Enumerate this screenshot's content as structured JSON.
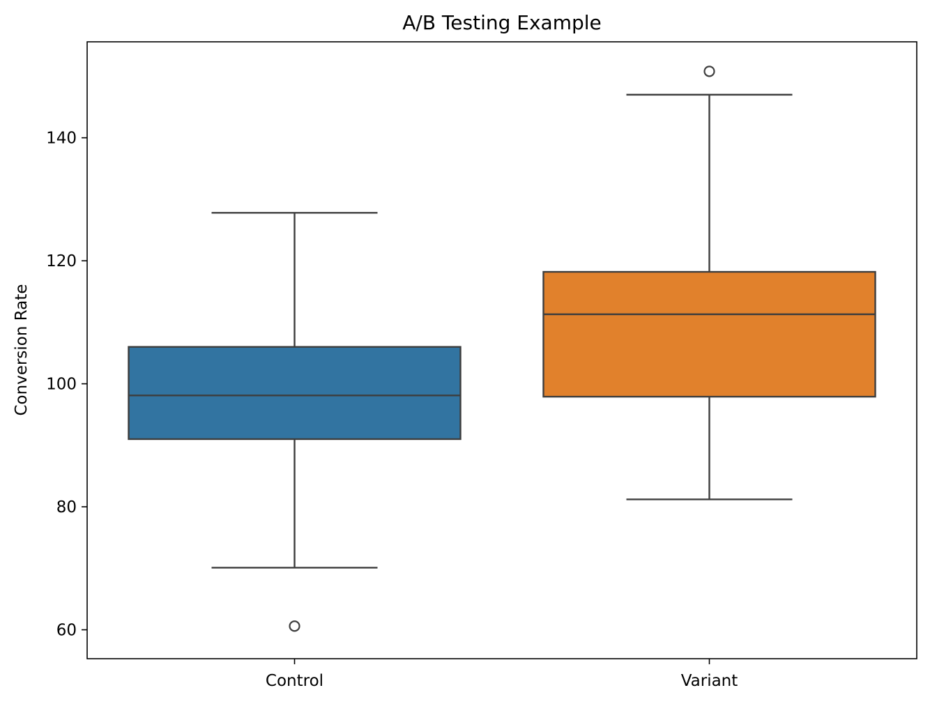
{
  "chart_data": {
    "type": "box",
    "title": "A/B Testing Example",
    "xlabel": "",
    "ylabel": "Conversion Rate",
    "categories": [
      "Control",
      "Variant"
    ],
    "ylim": [
      55.3,
      155.6
    ],
    "yticks": [
      60,
      80,
      100,
      120,
      140
    ],
    "grid": false,
    "boxes": [
      {
        "category": "Control",
        "whisker_low": 70.1,
        "q1": 91.0,
        "median": 98.1,
        "q3": 106.0,
        "whisker_high": 127.8,
        "outliers": [
          60.6
        ],
        "color": "#3274a1"
      },
      {
        "category": "Variant",
        "whisker_low": 81.2,
        "q1": 97.9,
        "median": 111.3,
        "q3": 118.2,
        "whisker_high": 147.0,
        "outliers": [
          150.8
        ],
        "color": "#e1812c"
      }
    ],
    "line_color": "#3d3d3d"
  }
}
